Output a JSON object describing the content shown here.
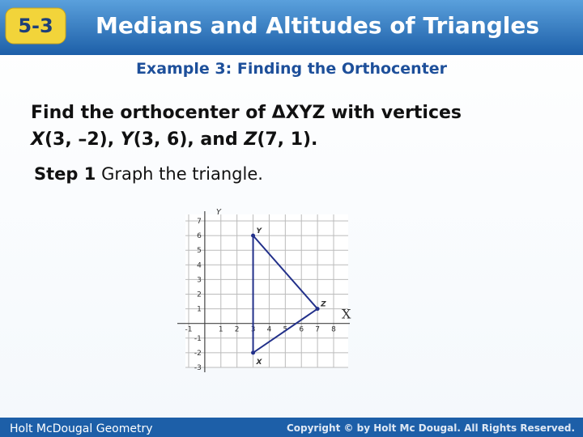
{
  "header": {
    "badge": "5-3",
    "title": "Medians and Altitudes of Triangles"
  },
  "subtitle": "Example 3: Finding the Orthocenter",
  "problem": {
    "line1": "Find the orthocenter of ΔXYZ with vertices",
    "line2": [
      "X",
      "(3, –2), ",
      "Y",
      "(3, 6), and ",
      "Z",
      "(7, 1)."
    ]
  },
  "step": {
    "label": "Step 1",
    "text": "Graph the triangle."
  },
  "graph": {
    "x_axis_label": "X",
    "y_axis_label": "Y",
    "xlim": [
      -1,
      8
    ],
    "ylim": [
      -3,
      7
    ],
    "xticks": [
      -1,
      1,
      2,
      3,
      4,
      5,
      6,
      7,
      8
    ],
    "yticks": [
      -3,
      -2,
      -1,
      1,
      2,
      3,
      4,
      5,
      6,
      7
    ],
    "vertices": [
      {
        "label": "X",
        "x": 3,
        "y": -2
      },
      {
        "label": "Y",
        "x": 3,
        "y": 6
      },
      {
        "label": "Z",
        "x": 7,
        "y": 1
      }
    ]
  },
  "footer": {
    "left": "Holt McDougal Geometry",
    "right": "Copyright © by Holt Mc Dougal. All Rights Reserved."
  }
}
